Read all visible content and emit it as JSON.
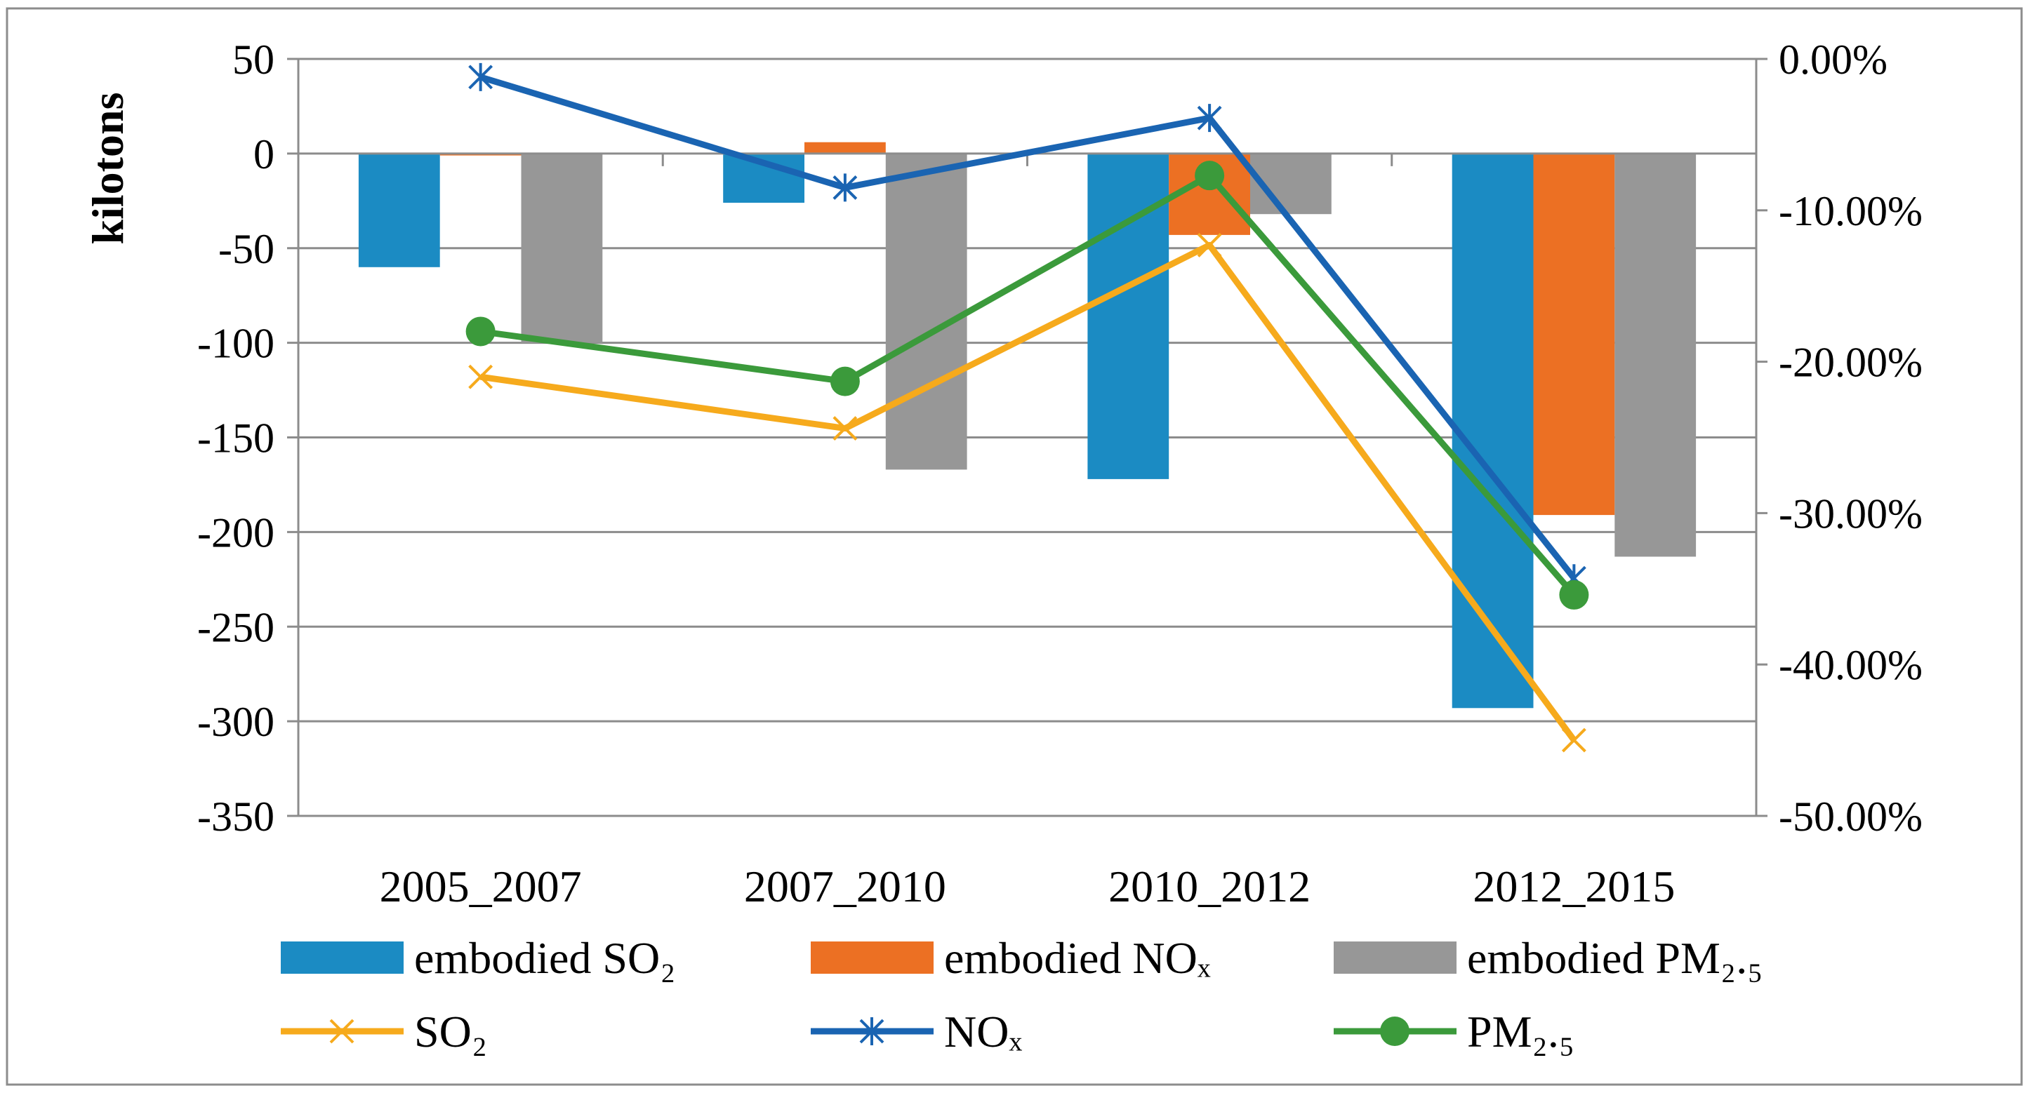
{
  "chart_data": {
    "type": "bar",
    "categories": [
      "2005_2007",
      "2007_2010",
      "2010_2012",
      "2012_2015"
    ],
    "ylabel": "kilotons",
    "y_left": {
      "min": -350,
      "max": 50,
      "step": 50,
      "ticks": [
        "50",
        "0",
        "-50",
        "-100",
        "-150",
        "-200",
        "-250",
        "-300",
        "-350"
      ]
    },
    "y_right": {
      "min": -0.5,
      "max": 0.0,
      "step": 0.1,
      "ticks": [
        "0.00%",
        "-10.00%",
        "-20.00%",
        "-30.00%",
        "-40.00%",
        "-50.00%"
      ]
    },
    "grid": true,
    "legend_position": "bottom",
    "series": [
      {
        "name": "embodied SO₂",
        "kind": "bar",
        "axis": "left",
        "color": "#1b8bc3",
        "values": [
          -60,
          -26,
          -172,
          -293
        ]
      },
      {
        "name": "embodied NOₓ",
        "kind": "bar",
        "axis": "left",
        "color": "#ec7023",
        "values": [
          -1,
          6,
          -43,
          -191
        ]
      },
      {
        "name": "embodied PM₂.₅",
        "kind": "bar",
        "axis": "left",
        "color": "#979797",
        "values": [
          -100,
          -167,
          -32,
          -213
        ]
      },
      {
        "name": "SO₂",
        "kind": "line",
        "axis": "right",
        "color": "#f6aa1c",
        "marker": "x",
        "values": [
          -0.21,
          -0.244,
          -0.123,
          -0.45
        ]
      },
      {
        "name": "NOₓ",
        "kind": "line",
        "axis": "right",
        "color": "#1a64b2",
        "marker": "asterisk",
        "values": [
          -0.012,
          -0.085,
          -0.039,
          -0.343
        ]
      },
      {
        "name": "PM₂.₅",
        "kind": "line",
        "axis": "right",
        "color": "#3b9a3b",
        "marker": "circle",
        "values": [
          -0.18,
          -0.213,
          -0.077,
          -0.354
        ]
      }
    ]
  }
}
